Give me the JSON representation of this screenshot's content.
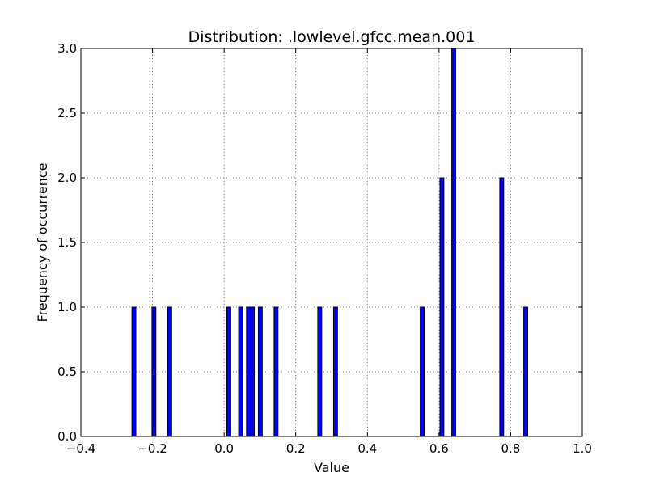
{
  "chart_data": {
    "type": "bar",
    "title": "Distribution: .lowlevel.gfcc.mean.001",
    "xlabel": "Value",
    "ylabel": "Frequency of occurrence",
    "xlim": [
      -0.4,
      1.0
    ],
    "ylim": [
      0,
      3.0
    ],
    "xticks": [
      -0.4,
      -0.2,
      0.0,
      0.2,
      0.4,
      0.6,
      0.8,
      1.0
    ],
    "xtick_labels": [
      "−0.4",
      "−0.2",
      "0.0",
      "0.2",
      "0.4",
      "0.6",
      "0.8",
      "1.0"
    ],
    "yticks": [
      0.0,
      0.5,
      1.0,
      1.5,
      2.0,
      2.5,
      3.0
    ],
    "ytick_labels": [
      "0.0",
      "0.5",
      "1.0",
      "1.5",
      "2.0",
      "2.5",
      "3.0"
    ],
    "grid": true,
    "bin_width": 0.011,
    "bins": [
      {
        "x": -0.252,
        "count": 1
      },
      {
        "x": -0.196,
        "count": 1
      },
      {
        "x": -0.152,
        "count": 1
      },
      {
        "x": 0.013,
        "count": 1
      },
      {
        "x": 0.046,
        "count": 1
      },
      {
        "x": 0.068,
        "count": 1
      },
      {
        "x": 0.079,
        "count": 1
      },
      {
        "x": 0.101,
        "count": 1
      },
      {
        "x": 0.145,
        "count": 1
      },
      {
        "x": 0.267,
        "count": 1
      },
      {
        "x": 0.311,
        "count": 1
      },
      {
        "x": 0.553,
        "count": 1
      },
      {
        "x": 0.608,
        "count": 2
      },
      {
        "x": 0.641,
        "count": 3
      },
      {
        "x": 0.775,
        "count": 2
      },
      {
        "x": 0.842,
        "count": 1
      }
    ],
    "colors": {
      "bar": "#0000ff"
    }
  }
}
